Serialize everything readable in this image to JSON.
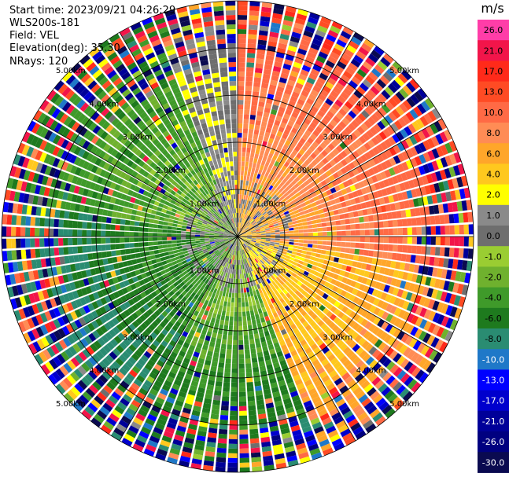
{
  "header": {
    "start_time": "Start time: 2023/09/21 04:26:29",
    "station": "WLS200s-181",
    "field": "Field: VEL",
    "elevation": "Elevation(deg): 35.30",
    "nrays": "NRays: 120"
  },
  "colorbar": {
    "unit": "m/s",
    "bins": [
      {
        "label": "26.0",
        "color": "#ff3da8"
      },
      {
        "label": "21.0",
        "color": "#f2154a"
      },
      {
        "label": "17.0",
        "color": "#ff2a1a"
      },
      {
        "label": "13.0",
        "color": "#ff4b24"
      },
      {
        "label": "10.0",
        "color": "#ff6a45"
      },
      {
        "label": "8.0",
        "color": "#ff8c55"
      },
      {
        "label": "6.0",
        "color": "#ffa62a"
      },
      {
        "label": "4.0",
        "color": "#ffc81e"
      },
      {
        "label": "2.0",
        "color": "#ffff00"
      },
      {
        "label": "1.0",
        "color": "#8a8a8a"
      },
      {
        "label": "0.0",
        "color": "#6e6e6e"
      },
      {
        "label": "-1.0",
        "color": "#9acd32"
      },
      {
        "label": "-2.0",
        "color": "#6fb12e"
      },
      {
        "label": "-4.0",
        "color": "#3f9a2a"
      },
      {
        "label": "-6.0",
        "color": "#1e7a1e"
      },
      {
        "label": "-8.0",
        "color": "#2a8c72"
      },
      {
        "label": "-10.0",
        "color": "#1f78c8"
      },
      {
        "label": "-13.0",
        "color": "#0000ff"
      },
      {
        "label": "-17.0",
        "color": "#0000cd"
      },
      {
        "label": "-21.0",
        "color": "#000099"
      },
      {
        "label": "-26.0",
        "color": "#000080"
      },
      {
        "label": "-30.0",
        "color": "#0a0a50"
      }
    ]
  },
  "chart_data": {
    "type": "heatmap",
    "projection": "polar-ppi",
    "field": "VEL",
    "unit": "m/s",
    "nrays": 120,
    "range_ring_labels": [
      "1.00km",
      "2.00km",
      "3.00km",
      "4.00km",
      "5.00km"
    ],
    "range_rings_km": [
      1,
      2,
      3,
      4,
      5
    ],
    "velocity_sectors": [
      {
        "from_azimuth_deg": 0,
        "to_azimuth_deg": 100,
        "near_range_value": 6.0,
        "far_range_value": 13.0
      },
      {
        "from_azimuth_deg": 100,
        "to_azimuth_deg": 160,
        "near_range_value": 4.0,
        "far_range_value": 8.0
      },
      {
        "from_azimuth_deg": 160,
        "to_azimuth_deg": 210,
        "near_range_value": 0.0,
        "far_range_value": -6.0
      },
      {
        "from_azimuth_deg": 210,
        "to_azimuth_deg": 280,
        "near_range_value": -2.0,
        "far_range_value": -8.0
      },
      {
        "from_azimuth_deg": 280,
        "to_azimuth_deg": 340,
        "near_range_value": -1.0,
        "far_range_value": -4.0
      },
      {
        "from_azimuth_deg": 340,
        "to_azimuth_deg": 360,
        "near_range_value": 2.0,
        "far_range_value": 1.0
      }
    ],
    "noise_begins_km": 3.5,
    "grid": true
  }
}
